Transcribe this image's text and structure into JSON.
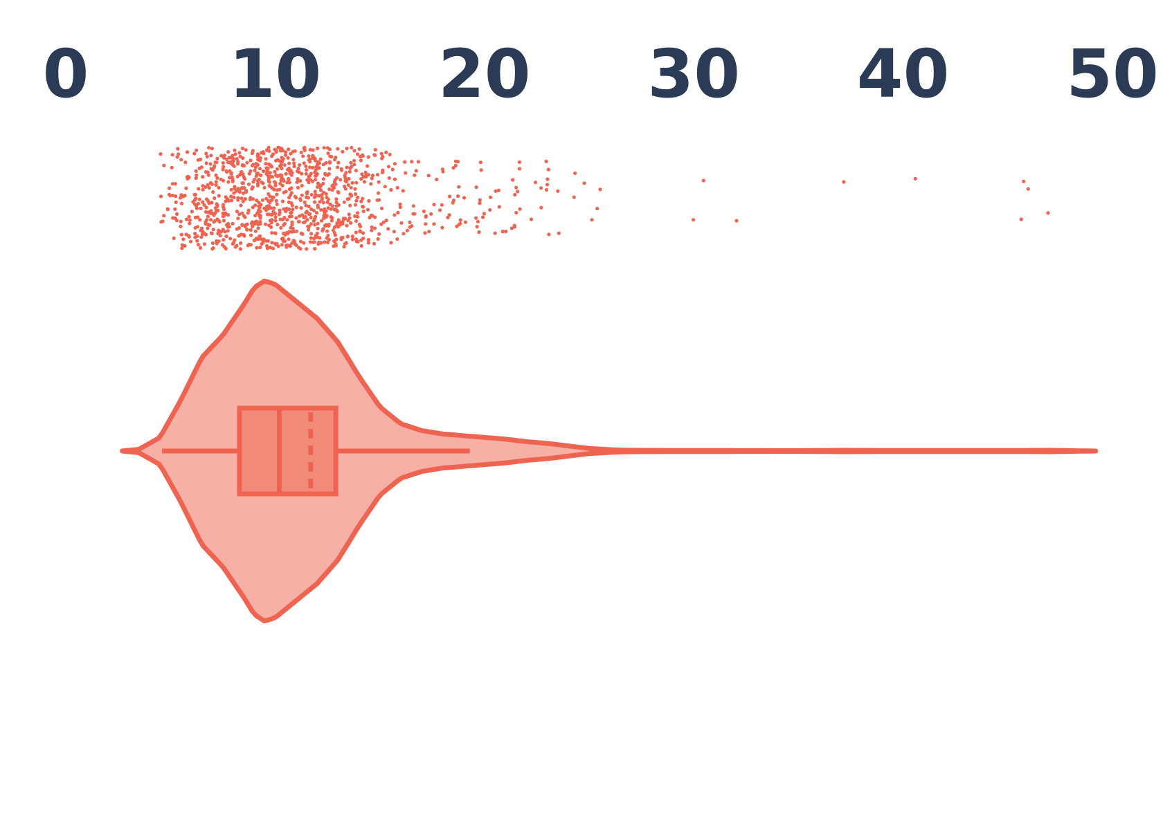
{
  "chart_data": {
    "type": "violin",
    "title": "",
    "xlabel": "",
    "ylabel": "",
    "xlim": [
      0,
      50
    ],
    "x_axis_position": "top",
    "x_ticks": [
      0,
      10,
      20,
      30,
      40,
      50
    ],
    "x_tick_labels": [
      "0",
      "10",
      "20",
      "30",
      "40",
      "50"
    ],
    "grid": false,
    "legend": "none",
    "colors": {
      "accent": "#ef6351",
      "violin_fill": "#f6b0a5",
      "box_fill": "#f28b7a",
      "tick_text": "#2b3a55"
    },
    "box": {
      "whisker_low": 4.6,
      "q1": 8.3,
      "median": 10.2,
      "mean": 11.7,
      "q3": 12.9,
      "whisker_high": 19.3
    },
    "violin": {
      "min": 2.7,
      "max": 49.2,
      "density": [
        [
          2.7,
          0.0
        ],
        [
          3.5,
          0.01
        ],
        [
          4.5,
          0.08
        ],
        [
          5.5,
          0.3
        ],
        [
          6.5,
          0.55
        ],
        [
          7.5,
          0.68
        ],
        [
          8.5,
          0.86
        ],
        [
          9.0,
          0.96
        ],
        [
          9.5,
          1.0
        ],
        [
          10.0,
          0.98
        ],
        [
          11.0,
          0.88
        ],
        [
          12.0,
          0.78
        ],
        [
          13.0,
          0.64
        ],
        [
          14.0,
          0.44
        ],
        [
          15.0,
          0.26
        ],
        [
          16.0,
          0.16
        ],
        [
          17.0,
          0.12
        ],
        [
          18.0,
          0.1
        ],
        [
          19.0,
          0.09
        ],
        [
          20.0,
          0.08
        ],
        [
          21.0,
          0.07
        ],
        [
          22.0,
          0.055
        ],
        [
          23.0,
          0.045
        ],
        [
          24.0,
          0.03
        ],
        [
          25.0,
          0.015
        ],
        [
          26.0,
          0.008
        ],
        [
          27.0,
          0.004
        ],
        [
          30.0,
          0.003
        ],
        [
          35.0,
          0.002
        ],
        [
          37.0,
          0.004
        ],
        [
          40.0,
          0.003
        ],
        [
          45.0,
          0.003
        ],
        [
          47.0,
          0.004
        ],
        [
          49.2,
          0.0
        ]
      ]
    },
    "strip": {
      "n_points": 1100,
      "x_range": [
        4.5,
        47.5
      ]
    }
  }
}
